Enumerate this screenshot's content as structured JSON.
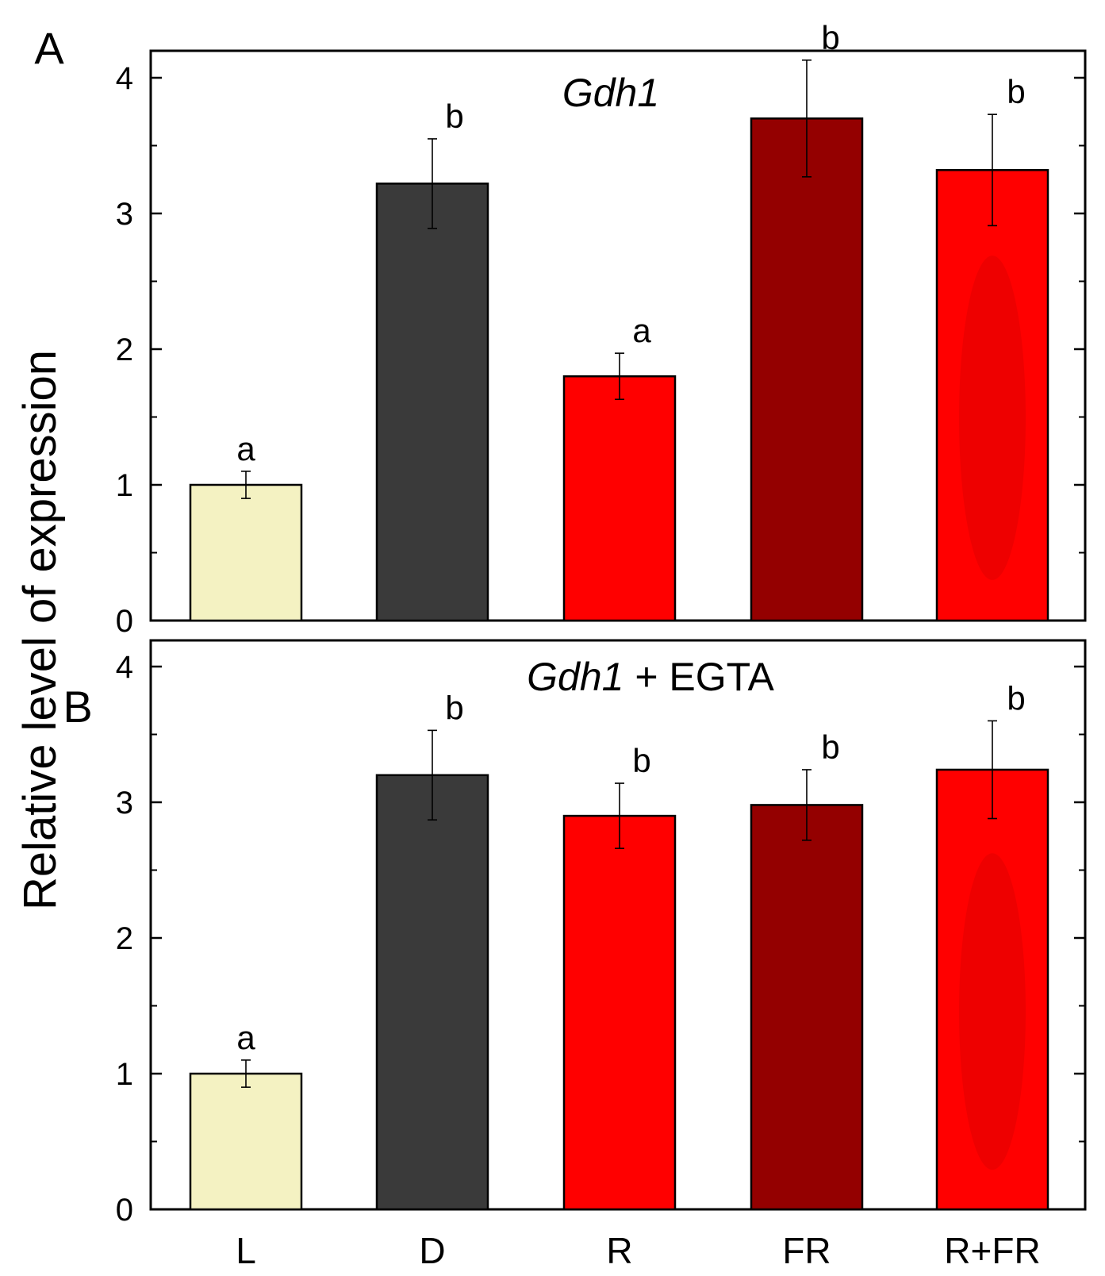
{
  "chart_data": {
    "type": "bar",
    "ylabel": "Relative level of expression",
    "categories": [
      "L",
      "D",
      "R",
      "FR",
      "R+FR"
    ],
    "colors": [
      "#f4f2c2",
      "#3a3a3a",
      "#ff0000",
      "#940000",
      "#ff0000"
    ],
    "ylim": [
      0,
      4.2
    ],
    "yticks": [
      "0",
      "1",
      "2",
      "3",
      "4"
    ],
    "panels": [
      {
        "letter": "A",
        "title_gene": "Gdh1",
        "title_rest": "",
        "values": [
          1.0,
          3.22,
          1.8,
          3.7,
          3.32
        ],
        "errors": [
          0.1,
          0.33,
          0.17,
          0.43,
          0.41
        ],
        "significance": [
          "a",
          "b",
          "a",
          "b",
          "b"
        ]
      },
      {
        "letter": "B",
        "title_gene": "Gdh1",
        "title_rest": " + EGTA",
        "values": [
          1.0,
          3.2,
          2.9,
          2.98,
          3.24
        ],
        "errors": [
          0.1,
          0.33,
          0.24,
          0.26,
          0.36
        ],
        "significance": [
          "a",
          "b",
          "b",
          "b",
          "b"
        ]
      }
    ]
  }
}
